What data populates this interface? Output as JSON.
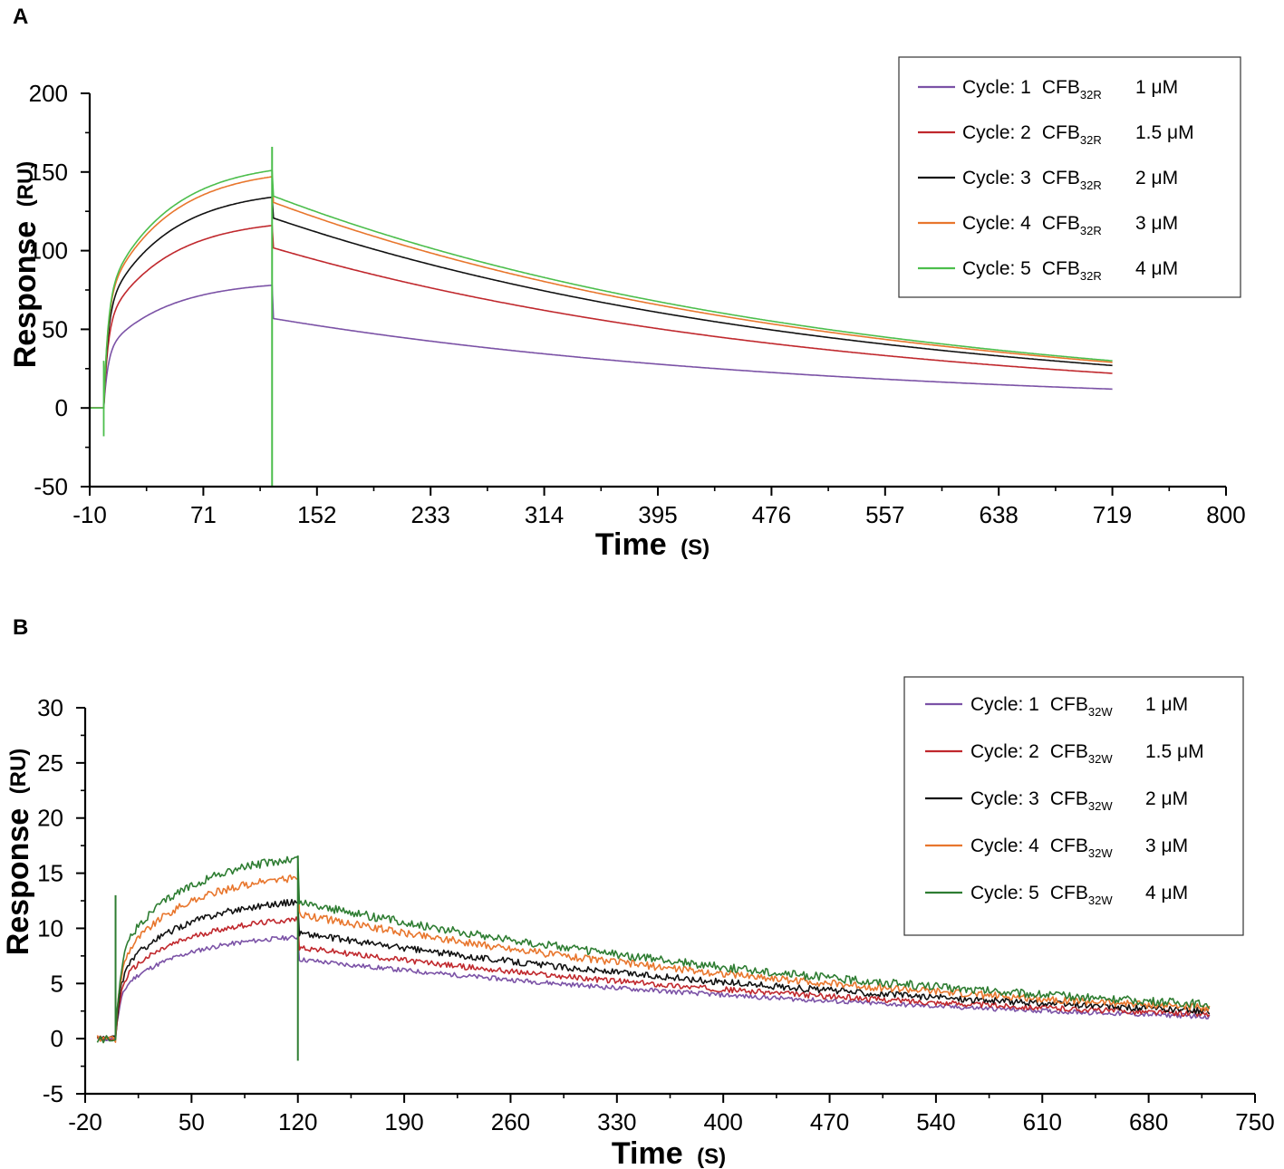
{
  "figure": {
    "panels": [
      {
        "label": "A",
        "legend_entries": [
          {
            "cycle": "Cycle: 1",
            "compound": "CFB",
            "subscript": "32R",
            "conc": "1 μM",
            "color": "#7b52a6"
          },
          {
            "cycle": "Cycle: 2",
            "compound": "CFB",
            "subscript": "32R",
            "conc": "1.5 μM",
            "color": "#c0282d"
          },
          {
            "cycle": "Cycle: 3",
            "compound": "CFB",
            "subscript": "32R",
            "conc": "2 μM",
            "color": "#111111"
          },
          {
            "cycle": "Cycle: 4",
            "compound": "CFB",
            "subscript": "32R",
            "conc": "3 μM",
            "color": "#e8762d"
          },
          {
            "cycle": "Cycle: 5",
            "compound": "CFB",
            "subscript": "32R",
            "conc": "4 μM",
            "color": "#4cbe4c"
          }
        ]
      },
      {
        "label": "B",
        "legend_entries": [
          {
            "cycle": "Cycle: 1",
            "compound": "CFB",
            "subscript": "32W",
            "conc": "1 μM",
            "color": "#7b52a6"
          },
          {
            "cycle": "Cycle: 2",
            "compound": "CFB",
            "subscript": "32W",
            "conc": "1.5 μM",
            "color": "#c0282d"
          },
          {
            "cycle": "Cycle: 3",
            "compound": "CFB",
            "subscript": "32W",
            "conc": "2 μM",
            "color": "#111111"
          },
          {
            "cycle": "Cycle: 4",
            "compound": "CFB",
            "subscript": "32W",
            "conc": "3 μM",
            "color": "#e8762d"
          },
          {
            "cycle": "Cycle: 5",
            "compound": "CFB",
            "subscript": "32W",
            "conc": "4 μM",
            "color": "#2e7d32"
          }
        ]
      }
    ]
  },
  "chart_data": [
    {
      "type": "line",
      "panel": "A",
      "xlabel": "Time",
      "xunit": "(S)",
      "ylabel": "Response",
      "yunit": "(RU)",
      "xlim": [
        -10,
        800
      ],
      "ylim": [
        -50,
        200
      ],
      "xticks": [
        "-10",
        "71",
        "152",
        "233",
        "314",
        "395",
        "476",
        "557",
        "638",
        "719",
        "800"
      ],
      "yticks": [
        "-50",
        "0",
        "50",
        "100",
        "150",
        "200"
      ],
      "legend_position": "top-right",
      "injection_start": 0,
      "injection_end": 120,
      "end_time": 719,
      "series": [
        {
          "name": "Cycle: 1 CFB32R 1 μM",
          "baseline": 0,
          "association_max": 78,
          "dissociation_start": 57,
          "dissociation_end": 12,
          "color": "#7b52a6"
        },
        {
          "name": "Cycle: 2 CFB32R 1.5 μM",
          "baseline": 0,
          "association_max": 116,
          "dissociation_start": 102,
          "dissociation_end": 22,
          "color": "#c0282d"
        },
        {
          "name": "Cycle: 3 CFB32R 2 μM",
          "baseline": 0,
          "association_max": 134,
          "dissociation_start": 121,
          "dissociation_end": 27,
          "color": "#111111"
        },
        {
          "name": "Cycle: 4 CFB32R 3 μM",
          "baseline": 0,
          "association_max": 147,
          "dissociation_start": 131,
          "dissociation_end": 29,
          "color": "#e8762d"
        },
        {
          "name": "Cycle: 5 CFB32R 4 μM",
          "baseline": 0,
          "association_max": 151,
          "dissociation_start": 135,
          "dissociation_end": 30,
          "color": "#4cbe4c"
        }
      ]
    },
    {
      "type": "line",
      "panel": "B",
      "xlabel": "Time",
      "xunit": "(S)",
      "ylabel": "Response",
      "yunit": "(RU)",
      "xlim": [
        -20,
        750
      ],
      "ylim": [
        -5,
        30
      ],
      "xticks": [
        "-20",
        "50",
        "120",
        "190",
        "260",
        "330",
        "400",
        "470",
        "540",
        "610",
        "680",
        "750"
      ],
      "yticks": [
        "-5",
        "0",
        "5",
        "10",
        "15",
        "20",
        "25",
        "30"
      ],
      "legend_position": "top-right",
      "injection_start": 0,
      "injection_end": 120,
      "end_time": 720,
      "series": [
        {
          "name": "Cycle: 1 CFB32W 1 μM",
          "baseline": 0,
          "association_max": 9.2,
          "dissociation_start": 7.2,
          "dissociation_end": 2.0,
          "color": "#7b52a6"
        },
        {
          "name": "Cycle: 2 CFB32W 1.5 μM",
          "baseline": 0,
          "association_max": 10.8,
          "dissociation_start": 8.3,
          "dissociation_end": 2.2,
          "color": "#c0282d"
        },
        {
          "name": "Cycle: 3 CFB32W 2 μM",
          "baseline": 0,
          "association_max": 12.4,
          "dissociation_start": 9.6,
          "dissociation_end": 2.5,
          "color": "#111111"
        },
        {
          "name": "Cycle: 4 CFB32W 3 μM",
          "baseline": 0,
          "association_max": 14.6,
          "dissociation_start": 11.3,
          "dissociation_end": 2.8,
          "color": "#e8762d"
        },
        {
          "name": "Cycle: 5 CFB32W 4 μM",
          "baseline": 0,
          "association_max": 16.3,
          "dissociation_start": 12.4,
          "dissociation_end": 3.1,
          "color": "#2e7d32"
        }
      ]
    }
  ]
}
